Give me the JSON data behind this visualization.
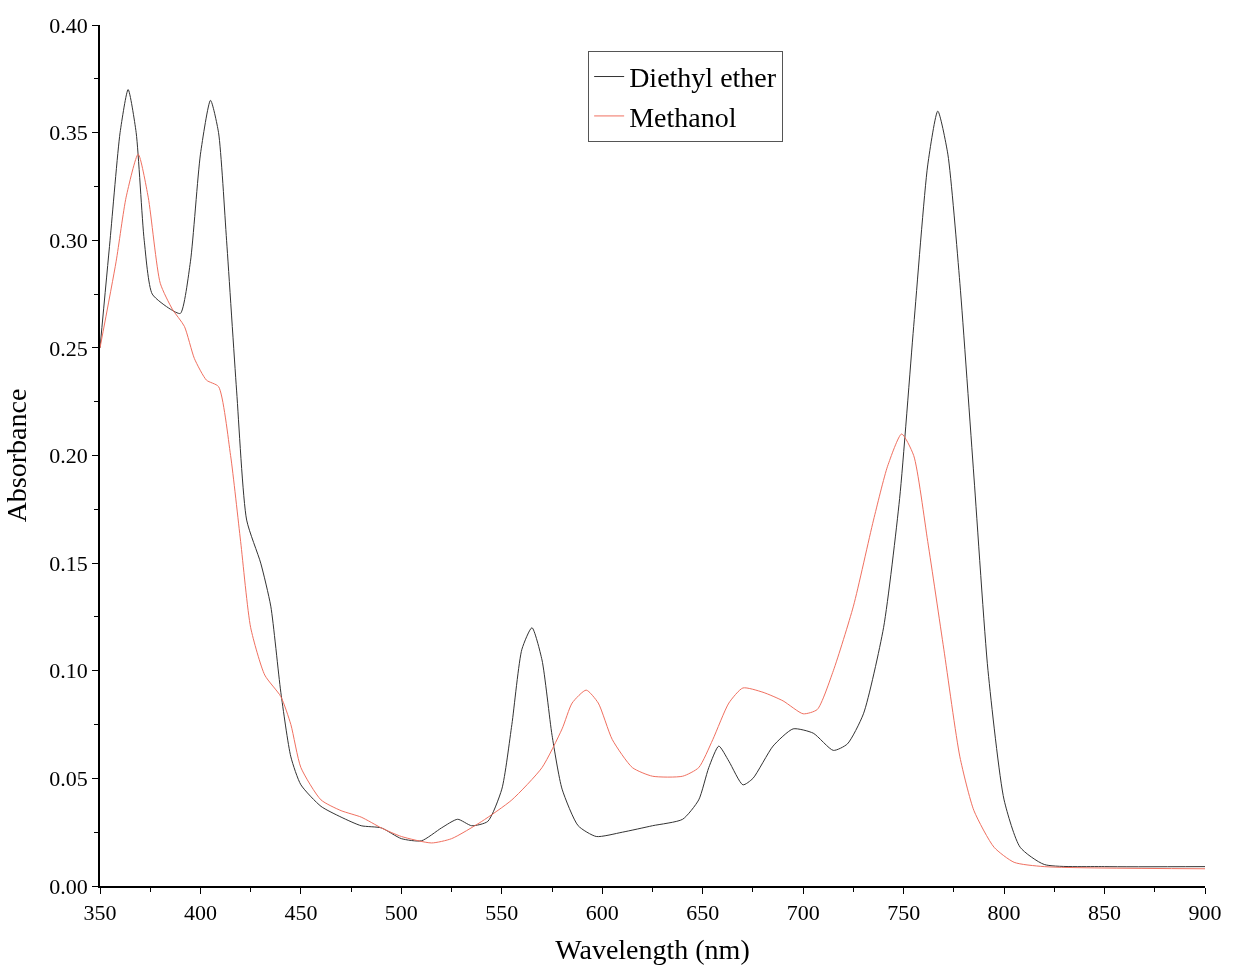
{
  "chart_data": {
    "type": "line",
    "xlabel": "Wavelength (nm)",
    "ylabel": "Absorbance",
    "xlim": [
      350,
      900
    ],
    "xticks": [
      350,
      400,
      450,
      500,
      550,
      600,
      650,
      700,
      750,
      800,
      850,
      900
    ],
    "ylim": [
      0,
      0.4
    ],
    "yticks": [
      {
        "value": 0,
        "label": "0.00"
      },
      {
        "value": 0.05,
        "label": "0.05"
      },
      {
        "value": 0.1,
        "label": "0.10"
      },
      {
        "value": 0.15,
        "label": "0.15"
      },
      {
        "value": 0.2,
        "label": "0.20"
      },
      {
        "value": 0.25,
        "label": "0.25"
      },
      {
        "value": 0.3,
        "label": "0.30"
      },
      {
        "value": 0.35,
        "label": "0.35"
      },
      {
        "value": 0.4,
        "label": "0.40"
      }
    ],
    "legend": "top",
    "marker": "none",
    "line_style": "solid",
    "series": [
      {
        "name": "Diethyl ether",
        "color": "#333333",
        "x": [
          350,
          355,
          360,
          364,
          368,
          372,
          376,
          385,
          390,
          395,
          400,
          405,
          409,
          413,
          418,
          423,
          430,
          435,
          440,
          445,
          450,
          460,
          470,
          480,
          490,
          500,
          510,
          520,
          528,
          535,
          543,
          550,
          555,
          560,
          565,
          570,
          575,
          580,
          588,
          597,
          610,
          625,
          640,
          648,
          653,
          658,
          663,
          670,
          675,
          685,
          695,
          705,
          715,
          722,
          730,
          740,
          748,
          755,
          762,
          767,
          772,
          778,
          785,
          792,
          800,
          808,
          820,
          850,
          900
        ],
        "values": [
          0.25,
          0.3,
          0.35,
          0.37,
          0.35,
          0.3,
          0.275,
          0.268,
          0.266,
          0.29,
          0.34,
          0.365,
          0.35,
          0.3,
          0.23,
          0.17,
          0.15,
          0.13,
          0.09,
          0.06,
          0.047,
          0.037,
          0.032,
          0.028,
          0.027,
          0.022,
          0.021,
          0.027,
          0.031,
          0.028,
          0.03,
          0.045,
          0.075,
          0.11,
          0.12,
          0.105,
          0.07,
          0.045,
          0.028,
          0.023,
          0.025,
          0.028,
          0.031,
          0.04,
          0.055,
          0.065,
          0.058,
          0.047,
          0.05,
          0.065,
          0.073,
          0.071,
          0.063,
          0.066,
          0.08,
          0.12,
          0.18,
          0.26,
          0.335,
          0.36,
          0.34,
          0.28,
          0.19,
          0.1,
          0.04,
          0.018,
          0.01,
          0.009,
          0.009
        ]
      },
      {
        "name": "Methanol",
        "color": "#f07060",
        "x": [
          350,
          358,
          363,
          369,
          374,
          380,
          386,
          392,
          397,
          403,
          409,
          415,
          420,
          425,
          432,
          440,
          445,
          450,
          460,
          470,
          480,
          490,
          500,
          515,
          525,
          540,
          555,
          570,
          580,
          585,
          592,
          598,
          605,
          615,
          625,
          640,
          648,
          655,
          663,
          670,
          680,
          690,
          700,
          707,
          715,
          725,
          735,
          742,
          749,
          755,
          762,
          770,
          778,
          785,
          795,
          805,
          820,
          900
        ],
        "values": [
          0.25,
          0.29,
          0.32,
          0.34,
          0.32,
          0.28,
          0.268,
          0.26,
          0.245,
          0.235,
          0.232,
          0.2,
          0.16,
          0.12,
          0.098,
          0.088,
          0.075,
          0.055,
          0.04,
          0.035,
          0.032,
          0.027,
          0.023,
          0.02,
          0.022,
          0.03,
          0.04,
          0.055,
          0.073,
          0.085,
          0.091,
          0.085,
          0.068,
          0.055,
          0.051,
          0.051,
          0.055,
          0.068,
          0.085,
          0.092,
          0.09,
          0.086,
          0.08,
          0.082,
          0.1,
          0.13,
          0.17,
          0.195,
          0.21,
          0.2,
          0.16,
          0.11,
          0.06,
          0.035,
          0.018,
          0.011,
          0.009,
          0.008
        ]
      }
    ]
  }
}
